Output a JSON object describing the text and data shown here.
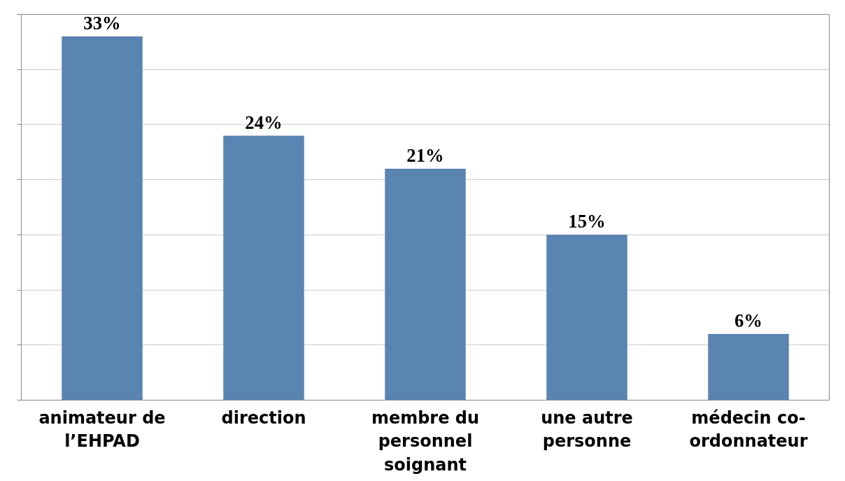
{
  "chart_data": {
    "type": "bar",
    "categories": [
      "animateur de l’EHPAD",
      "direction",
      "membre du personnel soignant",
      "une autre personne",
      "médecin co-ordonnateur"
    ],
    "values": [
      33,
      24,
      21,
      15,
      6
    ],
    "value_labels": [
      "33%",
      "24%",
      "21%",
      "15%",
      "6%"
    ],
    "color": "#5a84b2",
    "ylim": [
      0,
      35
    ],
    "yticks": [
      {
        "value": 0,
        "label": null
      },
      {
        "value": 5,
        "label": null
      },
      {
        "value": 10,
        "label": null
      },
      {
        "value": 15,
        "label": null
      },
      {
        "value": 20,
        "label": null
      },
      {
        "value": 25,
        "label": null
      },
      {
        "value": 30,
        "label": null
      },
      {
        "value": 35,
        "label": null
      }
    ],
    "grid": "y",
    "tick_labels": "x"
  }
}
